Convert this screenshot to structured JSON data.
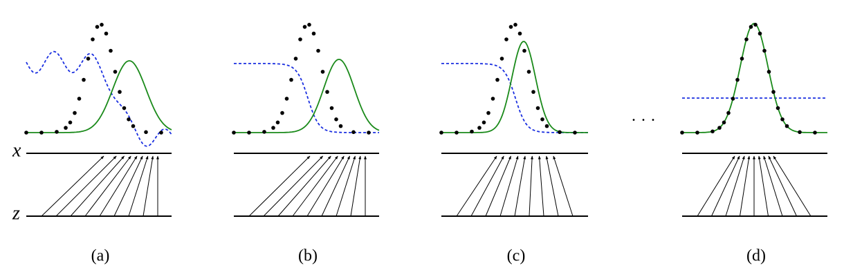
{
  "axes": {
    "x": "x",
    "z": "z"
  },
  "panels": [
    {
      "label": "(a)"
    },
    {
      "label": "(b)"
    },
    {
      "label": "(c)"
    },
    {
      "label": "(d)"
    }
  ],
  "ellipsis": "· · ·"
}
